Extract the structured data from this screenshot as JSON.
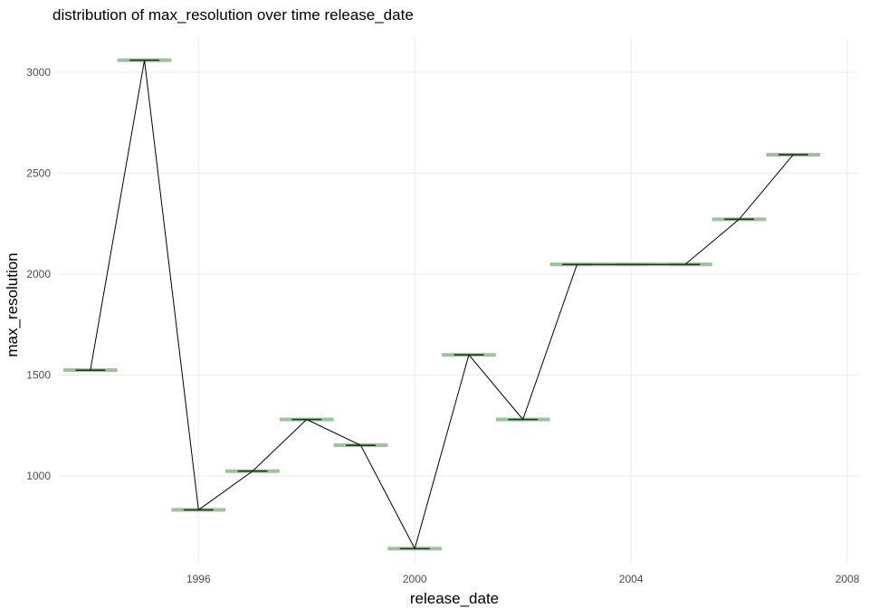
{
  "chart_data": {
    "type": "box",
    "title": "distribution of max_resolution over time release_date",
    "xlabel": "release_date",
    "ylabel": "max_resolution",
    "xlim": [
      1993.4,
      2008.2
    ],
    "ylim": [
      570,
      3170
    ],
    "x_ticks": [
      1996,
      2000,
      2004,
      2008
    ],
    "y_ticks": [
      1000,
      1500,
      2000,
      2500,
      3000
    ],
    "grid": true,
    "fill_color": "#8fbc8f",
    "median_color": "#1a3d1a",
    "line_color": "#000000",
    "points": [
      {
        "x": 1994,
        "y": 1524
      },
      {
        "x": 1995,
        "y": 3060
      },
      {
        "x": 1996,
        "y": 832
      },
      {
        "x": 1997,
        "y": 1024
      },
      {
        "x": 1998,
        "y": 1280
      },
      {
        "x": 1999,
        "y": 1152
      },
      {
        "x": 2000,
        "y": 640
      },
      {
        "x": 2001,
        "y": 1600
      },
      {
        "x": 2002,
        "y": 1280
      },
      {
        "x": 2003,
        "y": 2048
      },
      {
        "x": 2004,
        "y": 2048
      },
      {
        "x": 2005,
        "y": 2048
      },
      {
        "x": 2006,
        "y": 2272
      },
      {
        "x": 2007,
        "y": 2592
      }
    ]
  }
}
